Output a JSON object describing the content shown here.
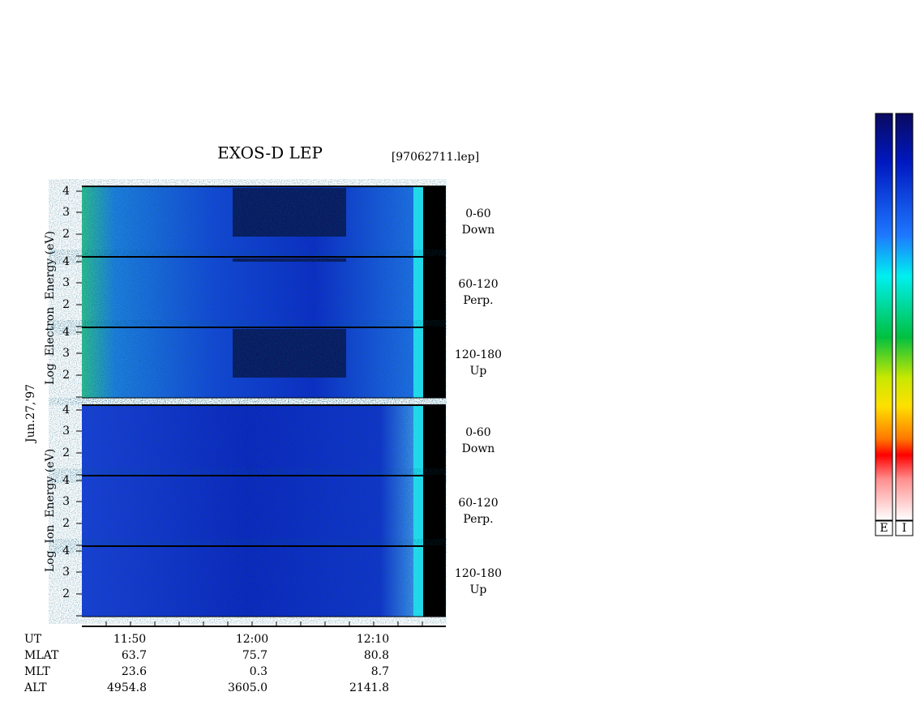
{
  "title": "EXOS-D LEP",
  "file": "[97062711.lep]",
  "date": "Jun.27,'97",
  "electron": {
    "axis_label": "Log  Electron  Energy (eV)",
    "panels": [
      {
        "range": "0-60",
        "direction": "Down"
      },
      {
        "range": "60-120",
        "direction": "Perp."
      },
      {
        "range": "120-180",
        "direction": "Up"
      }
    ]
  },
  "ion": {
    "axis_label": "Log  Ion  Energy (eV)",
    "panels": [
      {
        "range": "0-60",
        "direction": "Down"
      },
      {
        "range": "60-120",
        "direction": "Perp."
      },
      {
        "range": "120-180",
        "direction": "Up"
      }
    ]
  },
  "energy_ticks": [
    "4",
    "3",
    "2"
  ],
  "time_axis": {
    "label": "UT",
    "ticks": [
      "11:50",
      "12:00",
      "12:10"
    ]
  },
  "ephemeris": [
    [
      "MLAT",
      "63.7",
      "75.7",
      "80.8"
    ],
    [
      "MLT",
      "23.6",
      "0.3",
      "8.7"
    ],
    [
      "ALT",
      "4954.8",
      "3605.0",
      "2141.8"
    ]
  ],
  "colorbars": [
    "E",
    "I"
  ]
}
